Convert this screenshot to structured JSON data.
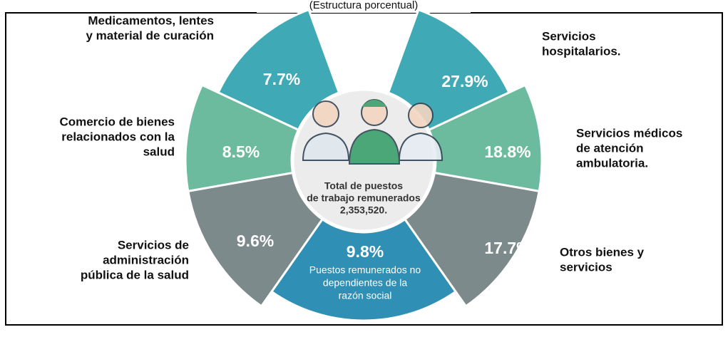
{
  "subtitle": "(Estructura porcentual)",
  "center": {
    "lines": [
      "Total de puestos",
      "de trabajo remunerados",
      "2,353,520."
    ]
  },
  "segments": [
    {
      "label": [
        "Medicamentos, lentes",
        "y material de curación"
      ],
      "value": "7.7%"
    },
    {
      "label": [
        "Comercio de bienes",
        "relacionados con la",
        "salud"
      ],
      "value": "8.5%"
    },
    {
      "label": [
        "Servicios de",
        "administración",
        "pública de la salud"
      ],
      "value": "9.6%"
    },
    {
      "label": [
        "Servicios",
        "hospitalarios."
      ],
      "value": "27.9%"
    },
    {
      "label": [
        "Servicios médicos",
        "de atención",
        "ambulatoria."
      ],
      "value": "18.8%"
    },
    {
      "label": [
        "Otros bienes y",
        "servicios"
      ],
      "value": "17.7%"
    }
  ],
  "bottom": {
    "value": "9.8%",
    "lines": [
      "Puestos remunerados no",
      "dependientes de la",
      "razón social"
    ]
  }
}
